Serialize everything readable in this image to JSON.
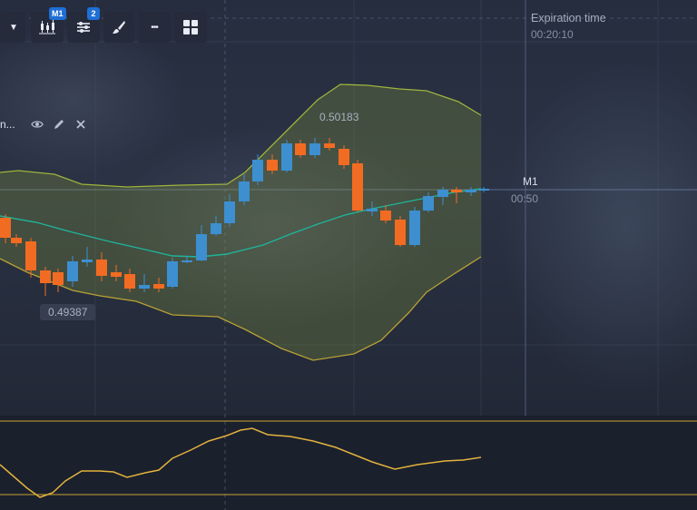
{
  "toolbar": {
    "timeframe_badge": "M1",
    "indicators_badge": "2",
    "more_label": "•••"
  },
  "indicator": {
    "name": "n...",
    "show_icon": "eye-icon",
    "edit_icon": "pencil-icon",
    "remove_icon": "close-icon"
  },
  "expiration": {
    "label": "Expiration time",
    "value": "00:20:10"
  },
  "timeframe": {
    "label": "M1",
    "time": "00:50"
  },
  "price_labels": {
    "high": "0.50183",
    "low": "0.49387"
  },
  "colors": {
    "bullish": "#3d8fcf",
    "bearish": "#f26b22",
    "band": "#a3b83a",
    "middle_line": "#1fb39b",
    "oscillator": "#e2b23c"
  }
}
